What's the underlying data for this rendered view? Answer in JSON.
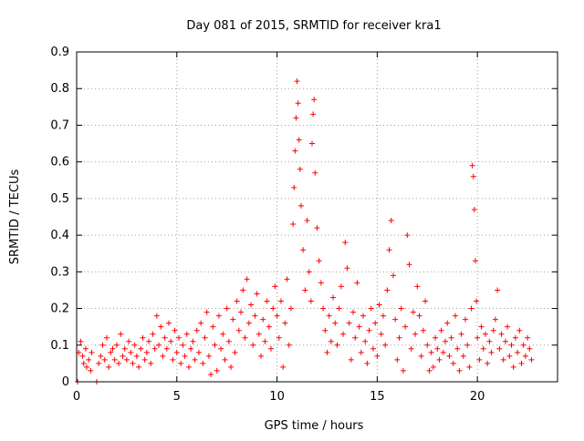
{
  "chart_data": {
    "type": "scatter",
    "title": "Day 081 of 2015, SRMTID for receiver kra1",
    "xlabel": "GPS time / hours",
    "ylabel": "SRMTID / TECUs",
    "xlim": [
      0,
      24
    ],
    "ylim": [
      0,
      0.9
    ],
    "xticks": [
      0,
      5,
      10,
      15,
      20
    ],
    "yticks": [
      0,
      0.1,
      0.2,
      0.3,
      0.4,
      0.5,
      0.6,
      0.7,
      0.8,
      0.9
    ],
    "grid": true,
    "legend": "none",
    "marker": "+",
    "color": "#ff0000",
    "series": [
      {
        "name": "kra1",
        "points": [
          [
            0.05,
            0.0
          ],
          [
            0.1,
            0.08
          ],
          [
            0.2,
            0.11
          ],
          [
            0.3,
            0.07
          ],
          [
            0.35,
            0.05
          ],
          [
            0.45,
            0.09
          ],
          [
            0.5,
            0.04
          ],
          [
            0.6,
            0.06
          ],
          [
            0.7,
            0.03
          ],
          [
            0.75,
            0.08
          ],
          [
            1.0,
            0.0
          ],
          [
            1.1,
            0.05
          ],
          [
            1.2,
            0.07
          ],
          [
            1.3,
            0.1
          ],
          [
            1.4,
            0.06
          ],
          [
            1.5,
            0.12
          ],
          [
            1.6,
            0.04
          ],
          [
            1.7,
            0.08
          ],
          [
            1.8,
            0.09
          ],
          [
            1.9,
            0.06
          ],
          [
            2.0,
            0.1
          ],
          [
            2.1,
            0.05
          ],
          [
            2.2,
            0.13
          ],
          [
            2.3,
            0.07
          ],
          [
            2.4,
            0.09
          ],
          [
            2.5,
            0.06
          ],
          [
            2.6,
            0.11
          ],
          [
            2.7,
            0.08
          ],
          [
            2.8,
            0.05
          ],
          [
            2.9,
            0.1
          ],
          [
            3.0,
            0.07
          ],
          [
            3.1,
            0.04
          ],
          [
            3.2,
            0.09
          ],
          [
            3.3,
            0.12
          ],
          [
            3.4,
            0.06
          ],
          [
            3.5,
            0.08
          ],
          [
            3.6,
            0.11
          ],
          [
            3.7,
            0.05
          ],
          [
            3.8,
            0.13
          ],
          [
            3.9,
            0.09
          ],
          [
            4.0,
            0.18
          ],
          [
            4.1,
            0.1
          ],
          [
            4.2,
            0.15
          ],
          [
            4.3,
            0.07
          ],
          [
            4.4,
            0.12
          ],
          [
            4.5,
            0.09
          ],
          [
            4.6,
            0.16
          ],
          [
            4.7,
            0.11
          ],
          [
            4.8,
            0.06
          ],
          [
            4.9,
            0.14
          ],
          [
            5.0,
            0.08
          ],
          [
            5.1,
            0.12
          ],
          [
            5.2,
            0.05
          ],
          [
            5.3,
            0.1
          ],
          [
            5.4,
            0.07
          ],
          [
            5.5,
            0.13
          ],
          [
            5.6,
            0.04
          ],
          [
            5.7,
            0.09
          ],
          [
            5.8,
            0.11
          ],
          [
            5.9,
            0.06
          ],
          [
            6.0,
            0.14
          ],
          [
            6.1,
            0.08
          ],
          [
            6.2,
            0.16
          ],
          [
            6.3,
            0.05
          ],
          [
            6.4,
            0.12
          ],
          [
            6.5,
            0.19
          ],
          [
            6.6,
            0.07
          ],
          [
            6.7,
            0.02
          ],
          [
            6.8,
            0.15
          ],
          [
            6.9,
            0.1
          ],
          [
            7.0,
            0.03
          ],
          [
            7.1,
            0.18
          ],
          [
            7.2,
            0.09
          ],
          [
            7.3,
            0.13
          ],
          [
            7.4,
            0.06
          ],
          [
            7.5,
            0.2
          ],
          [
            7.6,
            0.11
          ],
          [
            7.7,
            0.04
          ],
          [
            7.8,
            0.17
          ],
          [
            7.9,
            0.08
          ],
          [
            8.0,
            0.22
          ],
          [
            8.1,
            0.14
          ],
          [
            8.2,
            0.19
          ],
          [
            8.3,
            0.25
          ],
          [
            8.4,
            0.12
          ],
          [
            8.5,
            0.28
          ],
          [
            8.6,
            0.16
          ],
          [
            8.7,
            0.21
          ],
          [
            8.8,
            0.1
          ],
          [
            8.9,
            0.18
          ],
          [
            9.0,
            0.24
          ],
          [
            9.1,
            0.13
          ],
          [
            9.2,
            0.07
          ],
          [
            9.3,
            0.17
          ],
          [
            9.4,
            0.11
          ],
          [
            9.5,
            0.22
          ],
          [
            9.6,
            0.15
          ],
          [
            9.7,
            0.09
          ],
          [
            9.8,
            0.2
          ],
          [
            9.9,
            0.26
          ],
          [
            10.0,
            0.18
          ],
          [
            10.1,
            0.12
          ],
          [
            10.2,
            0.22
          ],
          [
            10.3,
            0.04
          ],
          [
            10.4,
            0.16
          ],
          [
            10.5,
            0.28
          ],
          [
            10.6,
            0.1
          ],
          [
            10.7,
            0.2
          ],
          [
            10.8,
            0.43
          ],
          [
            10.85,
            0.53
          ],
          [
            10.9,
            0.63
          ],
          [
            10.95,
            0.72
          ],
          [
            11.0,
            0.82
          ],
          [
            11.05,
            0.76
          ],
          [
            11.1,
            0.66
          ],
          [
            11.15,
            0.58
          ],
          [
            11.2,
            0.48
          ],
          [
            11.3,
            0.36
          ],
          [
            11.4,
            0.25
          ],
          [
            11.5,
            0.44
          ],
          [
            11.6,
            0.3
          ],
          [
            11.7,
            0.22
          ],
          [
            11.75,
            0.65
          ],
          [
            11.8,
            0.73
          ],
          [
            11.85,
            0.77
          ],
          [
            11.9,
            0.57
          ],
          [
            12.0,
            0.42
          ],
          [
            12.1,
            0.33
          ],
          [
            12.2,
            0.27
          ],
          [
            12.3,
            0.2
          ],
          [
            12.4,
            0.14
          ],
          [
            12.5,
            0.08
          ],
          [
            12.6,
            0.18
          ],
          [
            12.7,
            0.11
          ],
          [
            12.8,
            0.23
          ],
          [
            12.9,
            0.16
          ],
          [
            13.0,
            0.1
          ],
          [
            13.1,
            0.2
          ],
          [
            13.2,
            0.26
          ],
          [
            13.3,
            0.13
          ],
          [
            13.4,
            0.38
          ],
          [
            13.5,
            0.31
          ],
          [
            13.6,
            0.16
          ],
          [
            13.7,
            0.06
          ],
          [
            13.8,
            0.19
          ],
          [
            13.9,
            0.12
          ],
          [
            14.0,
            0.27
          ],
          [
            14.1,
            0.15
          ],
          [
            14.2,
            0.08
          ],
          [
            14.3,
            0.18
          ],
          [
            14.4,
            0.11
          ],
          [
            14.5,
            0.05
          ],
          [
            14.6,
            0.14
          ],
          [
            14.7,
            0.2
          ],
          [
            14.8,
            0.09
          ],
          [
            14.9,
            0.16
          ],
          [
            15.0,
            0.07
          ],
          [
            15.1,
            0.21
          ],
          [
            15.2,
            0.13
          ],
          [
            15.3,
            0.18
          ],
          [
            15.4,
            0.1
          ],
          [
            15.5,
            0.25
          ],
          [
            15.6,
            0.36
          ],
          [
            15.7,
            0.44
          ],
          [
            15.8,
            0.29
          ],
          [
            15.9,
            0.17
          ],
          [
            16.0,
            0.06
          ],
          [
            16.1,
            0.12
          ],
          [
            16.2,
            0.2
          ],
          [
            16.3,
            0.03
          ],
          [
            16.4,
            0.15
          ],
          [
            16.5,
            0.4
          ],
          [
            16.6,
            0.32
          ],
          [
            16.7,
            0.09
          ],
          [
            16.8,
            0.19
          ],
          [
            16.9,
            0.13
          ],
          [
            17.0,
            0.26
          ],
          [
            17.1,
            0.18
          ],
          [
            17.2,
            0.07
          ],
          [
            17.3,
            0.14
          ],
          [
            17.4,
            0.22
          ],
          [
            17.5,
            0.1
          ],
          [
            17.6,
            0.03
          ],
          [
            17.7,
            0.08
          ],
          [
            17.8,
            0.04
          ],
          [
            17.9,
            0.12
          ],
          [
            18.0,
            0.09
          ],
          [
            18.1,
            0.06
          ],
          [
            18.2,
            0.14
          ],
          [
            18.3,
            0.08
          ],
          [
            18.4,
            0.11
          ],
          [
            18.5,
            0.16
          ],
          [
            18.6,
            0.07
          ],
          [
            18.7,
            0.12
          ],
          [
            18.8,
            0.05
          ],
          [
            18.9,
            0.18
          ],
          [
            19.0,
            0.09
          ],
          [
            19.1,
            0.03
          ],
          [
            19.2,
            0.13
          ],
          [
            19.3,
            0.07
          ],
          [
            19.4,
            0.17
          ],
          [
            19.5,
            0.1
          ],
          [
            19.6,
            0.04
          ],
          [
            19.7,
            0.2
          ],
          [
            19.75,
            0.59
          ],
          [
            19.8,
            0.56
          ],
          [
            19.85,
            0.47
          ],
          [
            19.9,
            0.33
          ],
          [
            19.95,
            0.22
          ],
          [
            20.0,
            0.12
          ],
          [
            20.1,
            0.06
          ],
          [
            20.2,
            0.15
          ],
          [
            20.3,
            0.09
          ],
          [
            20.4,
            0.13
          ],
          [
            20.5,
            0.05
          ],
          [
            20.6,
            0.11
          ],
          [
            20.7,
            0.08
          ],
          [
            20.8,
            0.14
          ],
          [
            20.9,
            0.17
          ],
          [
            21.0,
            0.25
          ],
          [
            21.1,
            0.09
          ],
          [
            21.2,
            0.13
          ],
          [
            21.3,
            0.06
          ],
          [
            21.4,
            0.11
          ],
          [
            21.5,
            0.15
          ],
          [
            21.6,
            0.07
          ],
          [
            21.7,
            0.1
          ],
          [
            21.8,
            0.04
          ],
          [
            21.9,
            0.12
          ],
          [
            22.0,
            0.08
          ],
          [
            22.1,
            0.14
          ],
          [
            22.2,
            0.05
          ],
          [
            22.3,
            0.1
          ],
          [
            22.4,
            0.07
          ],
          [
            22.5,
            0.12
          ],
          [
            22.6,
            0.09
          ],
          [
            22.7,
            0.06
          ]
        ]
      }
    ]
  }
}
